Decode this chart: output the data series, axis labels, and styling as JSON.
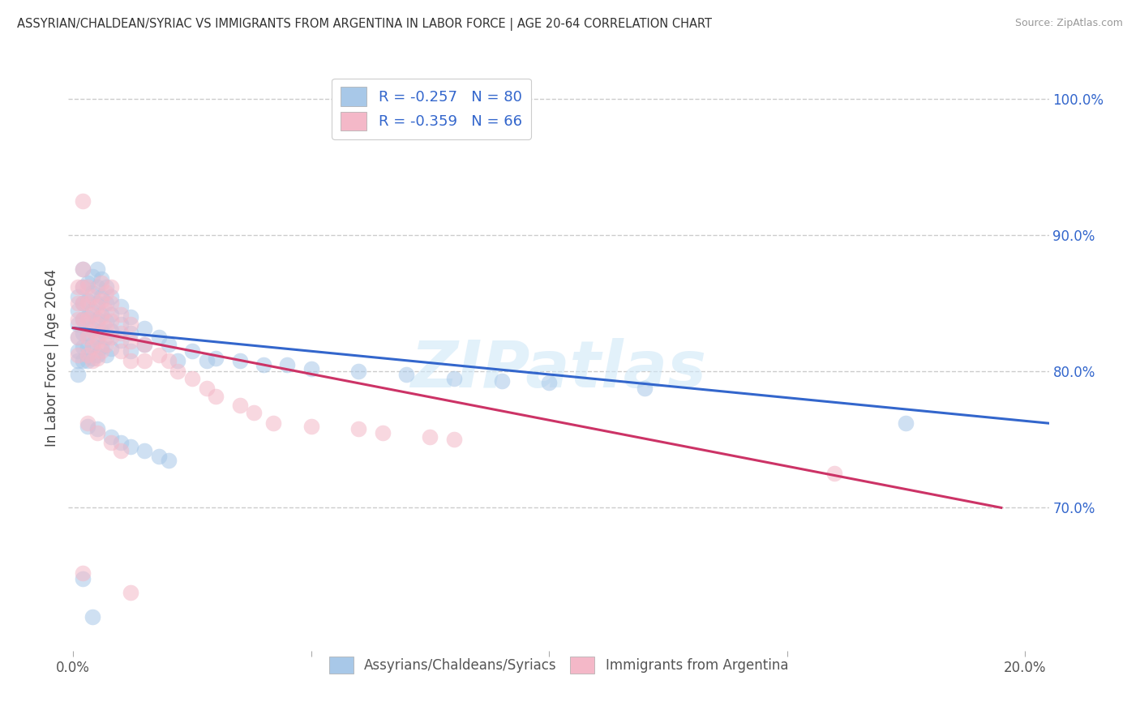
{
  "title": "ASSYRIAN/CHALDEAN/SYRIAC VS IMMIGRANTS FROM ARGENTINA IN LABOR FORCE | AGE 20-64 CORRELATION CHART",
  "source": "Source: ZipAtlas.com",
  "ylabel": "In Labor Force | Age 20-64",
  "xlim": [
    -0.001,
    0.205
  ],
  "ylim": [
    0.595,
    1.025
  ],
  "xticks": [
    0.0,
    0.05,
    0.1,
    0.15,
    0.2
  ],
  "xtick_labels": [
    "0.0%",
    "",
    "",
    "",
    "20.0%"
  ],
  "yticks_right": [
    0.7,
    0.8,
    0.9,
    1.0
  ],
  "ytick_labels_right": [
    "70.0%",
    "80.0%",
    "90.0%",
    "100.0%"
  ],
  "grid_color": "#cccccc",
  "background_color": "#ffffff",
  "blue_color": "#a8c8e8",
  "pink_color": "#f4b8c8",
  "blue_edge_color": "#7ab0d8",
  "pink_edge_color": "#e890a8",
  "blue_line_color": "#3366cc",
  "pink_line_color": "#cc3366",
  "blue_r": -0.257,
  "blue_n": 80,
  "pink_r": -0.359,
  "pink_n": 66,
  "legend_label_blue": "Assyrians/Chaldeans/Syriacs",
  "legend_label_pink": "Immigrants from Argentina",
  "watermark": "ZIPatlas",
  "blue_trend_x": [
    0.0,
    0.205
  ],
  "blue_trend_y": [
    0.832,
    0.762
  ],
  "pink_trend_x": [
    0.0,
    0.195
  ],
  "pink_trend_y": [
    0.832,
    0.7
  ],
  "blue_scatter": [
    [
      0.001,
      0.855
    ],
    [
      0.001,
      0.845
    ],
    [
      0.001,
      0.835
    ],
    [
      0.001,
      0.825
    ],
    [
      0.001,
      0.815
    ],
    [
      0.001,
      0.808
    ],
    [
      0.001,
      0.798
    ],
    [
      0.002,
      0.875
    ],
    [
      0.002,
      0.862
    ],
    [
      0.002,
      0.85
    ],
    [
      0.002,
      0.838
    ],
    [
      0.002,
      0.828
    ],
    [
      0.002,
      0.818
    ],
    [
      0.002,
      0.808
    ],
    [
      0.003,
      0.865
    ],
    [
      0.003,
      0.852
    ],
    [
      0.003,
      0.84
    ],
    [
      0.003,
      0.828
    ],
    [
      0.003,
      0.818
    ],
    [
      0.003,
      0.808
    ],
    [
      0.004,
      0.87
    ],
    [
      0.004,
      0.858
    ],
    [
      0.004,
      0.845
    ],
    [
      0.004,
      0.832
    ],
    [
      0.004,
      0.82
    ],
    [
      0.004,
      0.81
    ],
    [
      0.005,
      0.875
    ],
    [
      0.005,
      0.862
    ],
    [
      0.005,
      0.85
    ],
    [
      0.005,
      0.838
    ],
    [
      0.005,
      0.825
    ],
    [
      0.005,
      0.812
    ],
    [
      0.006,
      0.868
    ],
    [
      0.006,
      0.855
    ],
    [
      0.006,
      0.842
    ],
    [
      0.006,
      0.83
    ],
    [
      0.006,
      0.818
    ],
    [
      0.007,
      0.862
    ],
    [
      0.007,
      0.85
    ],
    [
      0.007,
      0.837
    ],
    [
      0.007,
      0.825
    ],
    [
      0.007,
      0.812
    ],
    [
      0.008,
      0.855
    ],
    [
      0.008,
      0.842
    ],
    [
      0.008,
      0.83
    ],
    [
      0.008,
      0.817
    ],
    [
      0.01,
      0.848
    ],
    [
      0.01,
      0.835
    ],
    [
      0.01,
      0.823
    ],
    [
      0.012,
      0.84
    ],
    [
      0.012,
      0.828
    ],
    [
      0.012,
      0.815
    ],
    [
      0.015,
      0.832
    ],
    [
      0.015,
      0.82
    ],
    [
      0.018,
      0.825
    ],
    [
      0.02,
      0.82
    ],
    [
      0.025,
      0.815
    ],
    [
      0.03,
      0.81
    ],
    [
      0.022,
      0.808
    ],
    [
      0.028,
      0.808
    ],
    [
      0.035,
      0.808
    ],
    [
      0.04,
      0.805
    ],
    [
      0.045,
      0.805
    ],
    [
      0.05,
      0.802
    ],
    [
      0.06,
      0.8
    ],
    [
      0.07,
      0.798
    ],
    [
      0.08,
      0.795
    ],
    [
      0.09,
      0.793
    ],
    [
      0.1,
      0.792
    ],
    [
      0.12,
      0.788
    ],
    [
      0.003,
      0.76
    ],
    [
      0.005,
      0.758
    ],
    [
      0.008,
      0.752
    ],
    [
      0.01,
      0.748
    ],
    [
      0.012,
      0.745
    ],
    [
      0.015,
      0.742
    ],
    [
      0.018,
      0.738
    ],
    [
      0.02,
      0.735
    ],
    [
      0.002,
      0.648
    ],
    [
      0.004,
      0.62
    ],
    [
      0.175,
      0.762
    ]
  ],
  "pink_scatter": [
    [
      0.001,
      0.862
    ],
    [
      0.001,
      0.85
    ],
    [
      0.001,
      0.838
    ],
    [
      0.001,
      0.825
    ],
    [
      0.001,
      0.812
    ],
    [
      0.002,
      0.875
    ],
    [
      0.002,
      0.862
    ],
    [
      0.002,
      0.85
    ],
    [
      0.002,
      0.838
    ],
    [
      0.002,
      0.925
    ],
    [
      0.003,
      0.862
    ],
    [
      0.003,
      0.85
    ],
    [
      0.003,
      0.838
    ],
    [
      0.003,
      0.825
    ],
    [
      0.003,
      0.812
    ],
    [
      0.004,
      0.855
    ],
    [
      0.004,
      0.842
    ],
    [
      0.004,
      0.83
    ],
    [
      0.004,
      0.818
    ],
    [
      0.004,
      0.808
    ],
    [
      0.005,
      0.848
    ],
    [
      0.005,
      0.835
    ],
    [
      0.005,
      0.822
    ],
    [
      0.005,
      0.81
    ],
    [
      0.006,
      0.865
    ],
    [
      0.006,
      0.852
    ],
    [
      0.006,
      0.84
    ],
    [
      0.006,
      0.828
    ],
    [
      0.006,
      0.815
    ],
    [
      0.007,
      0.858
    ],
    [
      0.007,
      0.845
    ],
    [
      0.007,
      0.832
    ],
    [
      0.007,
      0.82
    ],
    [
      0.008,
      0.862
    ],
    [
      0.008,
      0.85
    ],
    [
      0.008,
      0.837
    ],
    [
      0.008,
      0.825
    ],
    [
      0.01,
      0.842
    ],
    [
      0.01,
      0.828
    ],
    [
      0.01,
      0.815
    ],
    [
      0.012,
      0.835
    ],
    [
      0.012,
      0.822
    ],
    [
      0.012,
      0.808
    ],
    [
      0.015,
      0.82
    ],
    [
      0.015,
      0.808
    ],
    [
      0.018,
      0.812
    ],
    [
      0.02,
      0.808
    ],
    [
      0.022,
      0.8
    ],
    [
      0.025,
      0.795
    ],
    [
      0.028,
      0.788
    ],
    [
      0.03,
      0.782
    ],
    [
      0.035,
      0.775
    ],
    [
      0.038,
      0.77
    ],
    [
      0.042,
      0.762
    ],
    [
      0.05,
      0.76
    ],
    [
      0.06,
      0.758
    ],
    [
      0.065,
      0.755
    ],
    [
      0.075,
      0.752
    ],
    [
      0.08,
      0.75
    ],
    [
      0.003,
      0.762
    ],
    [
      0.005,
      0.755
    ],
    [
      0.008,
      0.748
    ],
    [
      0.01,
      0.742
    ],
    [
      0.002,
      0.652
    ],
    [
      0.16,
      0.725
    ],
    [
      0.012,
      0.638
    ]
  ]
}
